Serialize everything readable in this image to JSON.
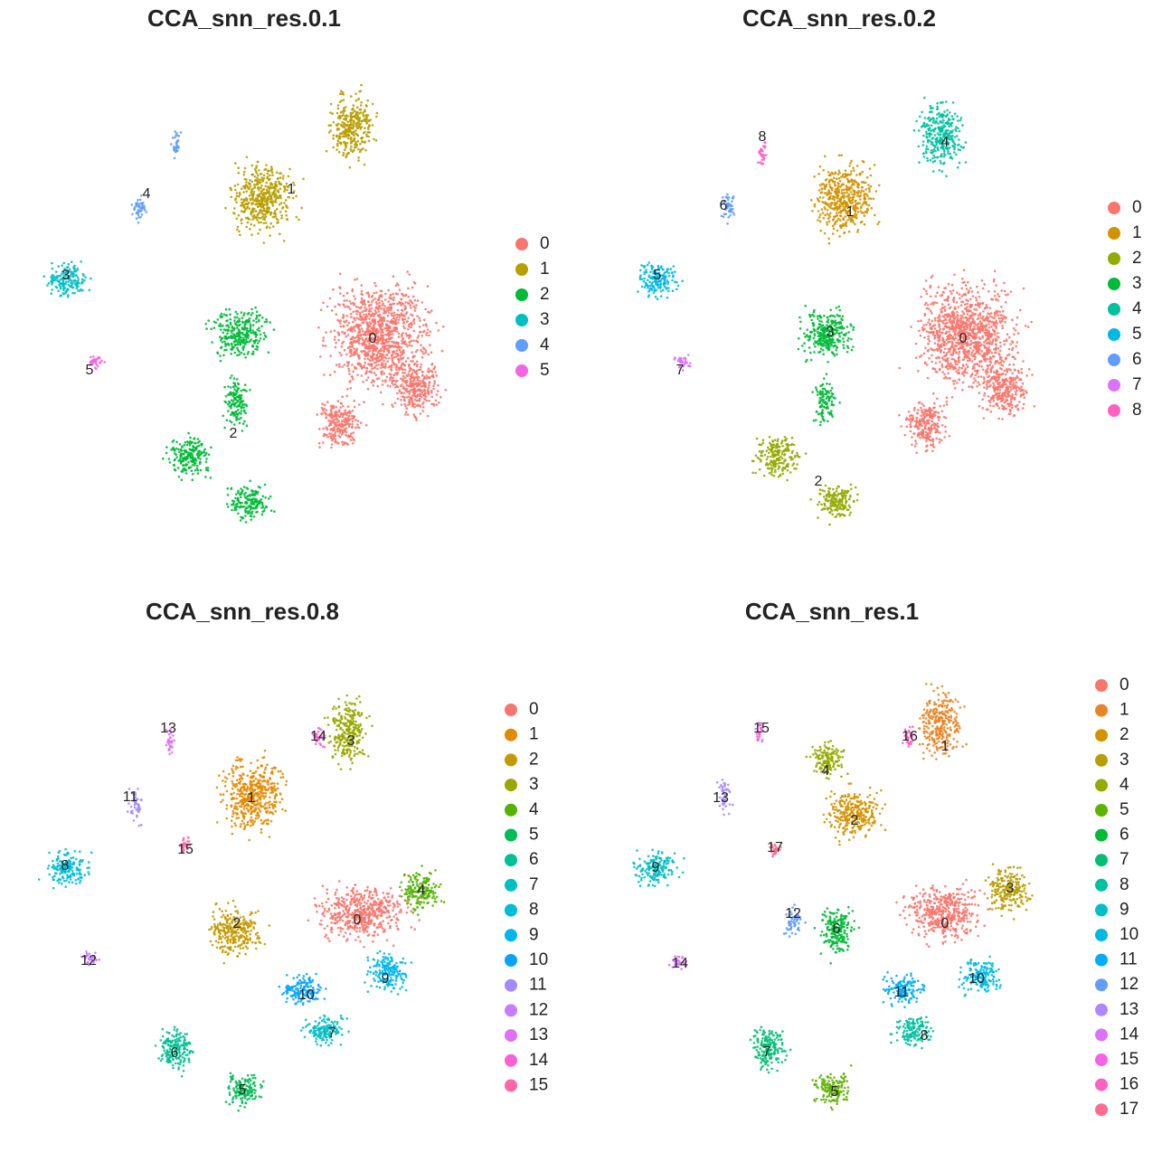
{
  "chart_data": [
    {
      "type": "scatter",
      "title": "CCA_snn_res.0.1",
      "clusters": [
        {
          "name": "0",
          "color": "#F8766D"
        },
        {
          "name": "1",
          "color": "#B79F00"
        },
        {
          "name": "2",
          "color": "#00BA38"
        },
        {
          "name": "3",
          "color": "#00BFC4"
        },
        {
          "name": "4",
          "color": "#619CFF"
        },
        {
          "name": "5",
          "color": "#F564E3"
        }
      ]
    },
    {
      "type": "scatter",
      "title": "CCA_snn_res.0.2",
      "clusters": [
        {
          "name": "0",
          "color": "#F8766D"
        },
        {
          "name": "1",
          "color": "#D39200"
        },
        {
          "name": "2",
          "color": "#93AA00"
        },
        {
          "name": "3",
          "color": "#00BA38"
        },
        {
          "name": "4",
          "color": "#00C19F"
        },
        {
          "name": "5",
          "color": "#00B9E3"
        },
        {
          "name": "6",
          "color": "#619CFF"
        },
        {
          "name": "7",
          "color": "#DB72FB"
        },
        {
          "name": "8",
          "color": "#FF61C3"
        }
      ]
    },
    {
      "type": "scatter",
      "title": "CCA_snn_res.0.8",
      "clusters": [
        {
          "name": "0",
          "color": "#F8766D"
        },
        {
          "name": "1",
          "color": "#E38900"
        },
        {
          "name": "2",
          "color": "#C49A00"
        },
        {
          "name": "3",
          "color": "#99A800"
        },
        {
          "name": "4",
          "color": "#53B400"
        },
        {
          "name": "5",
          "color": "#00BC56"
        },
        {
          "name": "6",
          "color": "#00C094"
        },
        {
          "name": "7",
          "color": "#00BFC4"
        },
        {
          "name": "8",
          "color": "#00BCD8"
        },
        {
          "name": "9",
          "color": "#00B6EB"
        },
        {
          "name": "10",
          "color": "#06A4FF"
        },
        {
          "name": "11",
          "color": "#A58AFF"
        },
        {
          "name": "12",
          "color": "#C77CFF"
        },
        {
          "name": "13",
          "color": "#DF70F8"
        },
        {
          "name": "14",
          "color": "#FB61D7"
        },
        {
          "name": "15",
          "color": "#FF66A8"
        }
      ]
    },
    {
      "type": "scatter",
      "title": "CCA_snn_res.1",
      "clusters": [
        {
          "name": "0",
          "color": "#F8766D"
        },
        {
          "name": "1",
          "color": "#E88526"
        },
        {
          "name": "2",
          "color": "#D39200"
        },
        {
          "name": "3",
          "color": "#B79F00"
        },
        {
          "name": "4",
          "color": "#93AA00"
        },
        {
          "name": "5",
          "color": "#5EB300"
        },
        {
          "name": "6",
          "color": "#00BA38"
        },
        {
          "name": "7",
          "color": "#00BF74"
        },
        {
          "name": "8",
          "color": "#00C19F"
        },
        {
          "name": "9",
          "color": "#00BFC4"
        },
        {
          "name": "10",
          "color": "#00B9E3"
        },
        {
          "name": "11",
          "color": "#00ADFA"
        },
        {
          "name": "12",
          "color": "#619CFF"
        },
        {
          "name": "13",
          "color": "#AE87FF"
        },
        {
          "name": "14",
          "color": "#DB72FB"
        },
        {
          "name": "15",
          "color": "#F564E3"
        },
        {
          "name": "16",
          "color": "#FF61C3"
        },
        {
          "name": "17",
          "color": "#FF6C91"
        }
      ]
    }
  ]
}
